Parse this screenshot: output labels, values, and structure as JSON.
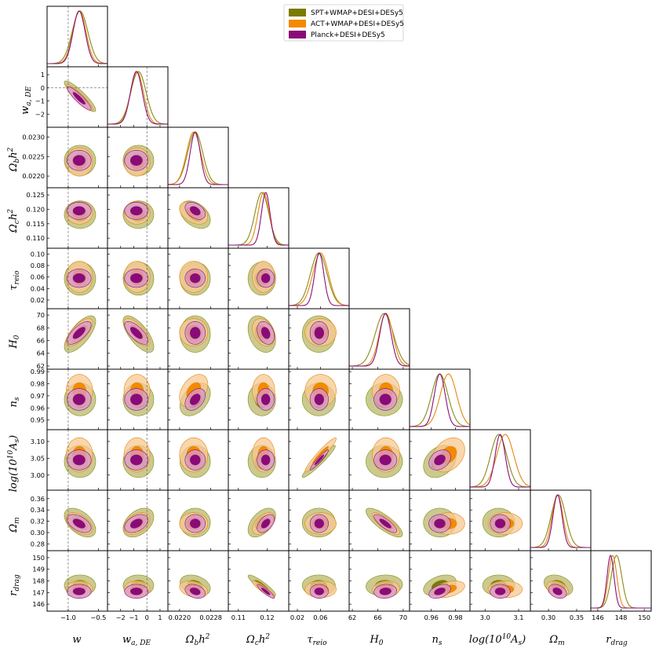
{
  "chart_data": {
    "type": "triangle-corner-plot",
    "title": "",
    "parameters": [
      {
        "key": "w",
        "ticks": [
          -1.0,
          -0.5
        ],
        "tick_labels": [
          "−1.0",
          "−0.5"
        ],
        "range": [
          -1.35,
          -0.35
        ],
        "mean": -0.82,
        "sd": 0.1,
        "ref": -1
      },
      {
        "key": "wa",
        "ticks": [
          -2,
          -1,
          0,
          1
        ],
        "tick_labels": [
          "−2",
          "−1",
          "0",
          "1"
        ],
        "range": [
          -3.0,
          1.6
        ],
        "mean": -0.8,
        "sd": 0.45,
        "ref": 0
      },
      {
        "key": "obh2",
        "ticks": [
          0.022,
          0.0225,
          0.023
        ],
        "tick_labels": [
          "0.0220",
          "0.0225",
          "0.0230"
        ],
        "range": [
          0.0217,
          0.02325
        ],
        "mean": 0.0224,
        "sd": 0.00013
      },
      {
        "key": "och2",
        "ticks": [
          0.11,
          0.115,
          0.12,
          0.125
        ],
        "tick_labels": [
          "0.110",
          "0.115",
          "0.120",
          "0.125"
        ],
        "range": [
          0.1065,
          0.1275
        ],
        "mean": 0.1195,
        "sd": 0.0015
      },
      {
        "key": "tau",
        "ticks": [
          0.02,
          0.04,
          0.06,
          0.08,
          0.1
        ],
        "tick_labels": [
          "0.02",
          "0.04",
          "0.06",
          "0.08",
          "0.10"
        ],
        "range": [
          0.005,
          0.11
        ],
        "mean": 0.058,
        "sd": 0.008
      },
      {
        "key": "H0",
        "ticks": [
          62,
          64,
          66,
          68,
          70
        ],
        "tick_labels": [
          "62",
          "64",
          "66",
          "68",
          "70"
        ],
        "range": [
          61.5,
          71.0
        ],
        "mean": 67.2,
        "sd": 0.9
      },
      {
        "key": "ns",
        "ticks": [
          0.95,
          0.96,
          0.97,
          0.98,
          0.99
        ],
        "tick_labels": [
          "0.95",
          "0.96",
          "0.97",
          "0.98",
          "0.99"
        ],
        "range": [
          0.942,
          0.992
        ],
        "mean": 0.967,
        "sd": 0.0045
      },
      {
        "key": "logAs",
        "ticks": [
          3.0,
          3.05,
          3.1
        ],
        "tick_labels": [
          "3.00",
          "3.05",
          "3.10"
        ],
        "range": [
          2.955,
          3.135
        ],
        "mean": 3.045,
        "sd": 0.015
      },
      {
        "key": "Om",
        "ticks": [
          0.28,
          0.3,
          0.32,
          0.34,
          0.36
        ],
        "tick_labels": [
          "0.28",
          "0.30",
          "0.32",
          "0.34",
          "0.36"
        ],
        "range": [
          0.268,
          0.375
        ],
        "mean": 0.316,
        "sd": 0.008
      },
      {
        "key": "rdrag",
        "ticks": [
          146,
          147,
          148,
          149,
          150
        ],
        "tick_labels": [
          "146",
          "147",
          "148",
          "149",
          "150"
        ],
        "range": [
          145.4,
          150.6
        ],
        "mean": 147.1,
        "sd": 0.3
      }
    ],
    "x_tick_overrides": {
      "w": {
        "ticks": [
          -1.0,
          -0.5
        ],
        "labels": [
          "−1.0",
          "−0.5"
        ]
      },
      "obh2": {
        "ticks": [
          0.022,
          0.0228
        ],
        "labels": [
          "0.0220",
          "0.0228"
        ]
      },
      "och2": {
        "ticks": [
          0.11,
          0.12
        ],
        "labels": [
          "0.11",
          "0.12"
        ]
      },
      "tau": {
        "ticks": [
          0.02,
          0.06
        ],
        "labels": [
          "0.02",
          "0.06"
        ]
      },
      "H0": {
        "ticks": [
          62,
          66,
          70
        ],
        "labels": [
          "62",
          "66",
          "70"
        ]
      },
      "ns": {
        "ticks": [
          0.96,
          0.98
        ],
        "labels": [
          "0.96",
          "0.98"
        ]
      },
      "logAs": {
        "ticks": [
          3.0,
          3.1
        ],
        "labels": [
          "3.0",
          "3.1"
        ]
      },
      "Om": {
        "ticks": [
          0.3,
          0.35
        ],
        "labels": [
          "0.30",
          "0.35"
        ]
      },
      "rdrag": {
        "ticks": [
          146,
          148,
          150
        ],
        "labels": [
          "146",
          "148",
          "150"
        ]
      }
    },
    "series": [
      {
        "name": "SPT+WMAP+DESI+DESy5",
        "fill_outer": "#b8b86a",
        "fill_inner": "#7b7a00",
        "line": "#8a8a1a"
      },
      {
        "name": "ACT+WMAP+DESI+DESy5",
        "fill_outer": "#f7c892",
        "fill_inner": "#f38a00",
        "line": "#e08a10"
      },
      {
        "name": "Planck+DESI+DESy5",
        "fill_outer": "#d898cc",
        "fill_inner": "#8a0a78",
        "line": "#8a1078"
      }
    ],
    "series_offsets": {
      "SPT+WMAP+DESI+DESy5": {
        "shift": [
          0.15,
          0.35,
          0.0,
          -0.9,
          -0.1,
          -0.2,
          0.0,
          -0.3,
          0.2,
          1.7
        ],
        "scale": [
          1.3,
          1.3,
          1.5,
          1.6,
          1.8,
          1.6,
          1.5,
          1.6,
          1.6,
          1.5
        ]
      },
      "ACT+WMAP+DESI+DESy5": {
        "shift": [
          0.05,
          0.1,
          -0.3,
          -0.5,
          0.3,
          0.1,
          1.6,
          1.0,
          0.0,
          0.6
        ],
        "scale": [
          1.1,
          1.1,
          1.4,
          1.3,
          1.7,
          1.2,
          1.5,
          1.7,
          1.2,
          1.2
        ]
      },
      "Planck+DESI+DESy5": {
        "shift": [
          0.0,
          0.0,
          0.0,
          0.0,
          0.0,
          0.0,
          0.0,
          0.0,
          0.0,
          0.0
        ],
        "scale": [
          1.0,
          1.0,
          1.0,
          1.0,
          1.0,
          1.0,
          1.0,
          1.0,
          1.0,
          1.0
        ]
      }
    },
    "correlations": {
      "w|wa": -0.9,
      "w|H0": 0.7,
      "wa|H0": -0.7,
      "w|Om": -0.5,
      "wa|Om": 0.4,
      "tau|logAs": 0.95,
      "obh2|och2": -0.4,
      "och2|H0": -0.3,
      "och2|Om": 0.5,
      "och2|rdrag": -0.9,
      "H0|Om": -0.8,
      "ns|logAs": 0.3,
      "ns|rdrag": 0.4,
      "obh2|rdrag": -0.3,
      "obh2|ns": 0.4,
      "Om|rdrag": -0.3,
      "H0|rdrag": 0.1
    },
    "legend": {
      "position": "top-right",
      "entries": [
        "SPT+WMAP+DESI+DESy5",
        "ACT+WMAP+DESI+DESy5",
        "Planck+DESI+DESy5"
      ]
    }
  }
}
